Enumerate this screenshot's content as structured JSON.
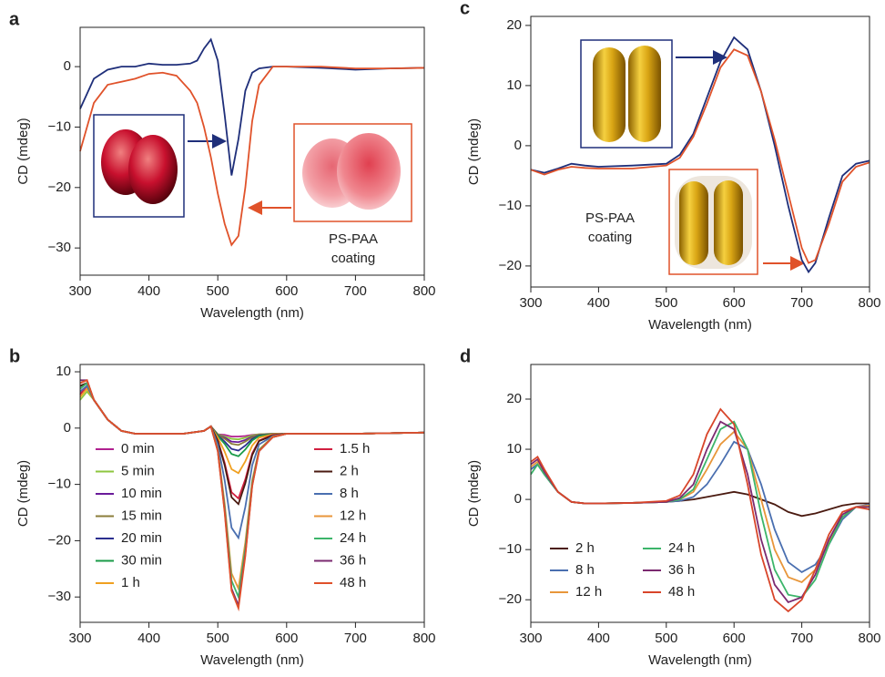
{
  "chart_data": [
    {
      "type": "line",
      "label": "a",
      "xlabel": "Wavelength (nm)",
      "ylabel": "CD (mdeg)",
      "xlim": [
        300,
        800
      ],
      "xticks": [
        300,
        400,
        500,
        600,
        700,
        800
      ],
      "ylim": [
        -34.5,
        6.5
      ],
      "yticks": [
        0,
        {
          "value": -10,
          "label": "−10"
        },
        {
          "value": -20,
          "label": "−20"
        },
        {
          "value": -30,
          "label": "−30"
        }
      ],
      "annotation": [
        "PS-PAA",
        "coating"
      ],
      "x": [
        300,
        320,
        340,
        360,
        380,
        400,
        420,
        440,
        460,
        470,
        480,
        490,
        500,
        510,
        520,
        530,
        540,
        550,
        560,
        580,
        600,
        650,
        700,
        750,
        800
      ],
      "series": [
        {
          "color": "#1f2f7a",
          "values": [
            -7,
            -2,
            -0.5,
            0,
            0,
            0.5,
            0.3,
            0.3,
            0.5,
            1,
            3,
            4.5,
            1,
            -8,
            -18,
            -12,
            -4,
            -1,
            -0.3,
            0,
            0,
            -0.2,
            -0.5,
            -0.3,
            -0.2
          ]
        },
        {
          "color": "#e0522a",
          "values": [
            -14,
            -6,
            -3,
            -2.5,
            -2,
            -1.2,
            -1,
            -1.5,
            -4,
            -6,
            -10,
            -15,
            -21,
            -26,
            -29.5,
            -28,
            -20,
            -9,
            -3,
            0,
            0,
            0,
            -0.3,
            -0.3,
            -0.2
          ]
        }
      ]
    },
    {
      "type": "line",
      "label": "b",
      "xlabel": "Wavelength (nm)",
      "ylabel": "CD (mdeg)",
      "xlim": [
        300,
        800
      ],
      "xticks": [
        300,
        400,
        500,
        600,
        700,
        800
      ],
      "ylim": [
        -34.5,
        11.3
      ],
      "yticks": [
        10,
        0,
        {
          "value": -10,
          "label": "−10"
        },
        {
          "value": -20,
          "label": "−20"
        },
        {
          "value": -30,
          "label": "−30"
        }
      ],
      "legend_columns": 2,
      "x": [
        300,
        310,
        320,
        340,
        360,
        380,
        400,
        450,
        480,
        490,
        500,
        510,
        520,
        530,
        540,
        550,
        560,
        580,
        600,
        700,
        800
      ],
      "series": [
        {
          "name": "0 min",
          "color": "#b0208f",
          "values": [
            6.5,
            7.5,
            5,
            1.5,
            -0.5,
            -1,
            -1,
            -1,
            -0.5,
            0.3,
            -1.1,
            -1.2,
            -1.5,
            -1.5,
            -1.4,
            -1.2,
            -1.1,
            -1,
            -1,
            -1,
            -0.8
          ]
        },
        {
          "name": "5 min",
          "color": "#8dc63f",
          "values": [
            5,
            6.5,
            5,
            1.5,
            -0.5,
            -1,
            -1,
            -1,
            -0.5,
            0.3,
            -1.1,
            -1.5,
            -1.9,
            -2,
            -1.7,
            -1.3,
            -1.1,
            -1,
            -1,
            -1,
            -0.8
          ]
        },
        {
          "name": "10 min",
          "color": "#6a1b9a",
          "values": [
            7,
            8,
            5,
            1.5,
            -0.5,
            -1,
            -1,
            -1,
            -0.5,
            0.3,
            -1.2,
            -1.7,
            -2.4,
            -2.5,
            -2.1,
            -1.5,
            -1.2,
            -1,
            -1,
            -1,
            -0.8
          ]
        },
        {
          "name": "15 min",
          "color": "#8b7d3a",
          "values": [
            7.5,
            8,
            5,
            1.5,
            -0.5,
            -1,
            -1,
            -1,
            -0.5,
            0.3,
            -1.2,
            -1.9,
            -2.8,
            -3,
            -2.4,
            -1.6,
            -1.2,
            -1,
            -1,
            -1,
            -0.8
          ]
        },
        {
          "name": "20 min",
          "color": "#2b2f8f",
          "values": [
            6,
            7.5,
            5,
            1.5,
            -0.5,
            -1,
            -1,
            -1,
            -0.5,
            0.3,
            -1.3,
            -2.4,
            -3.7,
            -4,
            -3.1,
            -1.9,
            -1.3,
            -1.1,
            -1,
            -1,
            -0.8
          ]
        },
        {
          "name": "30 min",
          "color": "#1a9b48",
          "values": [
            7,
            8,
            5,
            1.5,
            -0.5,
            -1,
            -1,
            -1,
            -0.5,
            0.3,
            -1.4,
            -2.8,
            -4.6,
            -5,
            -3.8,
            -2.2,
            -1.4,
            -1.1,
            -1,
            -1,
            -0.8
          ]
        },
        {
          "name": "1 h",
          "color": "#f0a020",
          "values": [
            5.5,
            7,
            5,
            1.5,
            -0.5,
            -1,
            -1,
            -1,
            -0.5,
            0.3,
            -1.7,
            -4.2,
            -7.3,
            -8,
            -5.9,
            -3.1,
            -1.7,
            -1.1,
            -1,
            -1,
            -0.8
          ]
        },
        {
          "name": "1.5 h",
          "color": "#d11f3f",
          "values": [
            6,
            7.5,
            5,
            1.5,
            -0.5,
            -1,
            -1,
            -1,
            -0.5,
            0.3,
            -2.2,
            -6.2,
            -11.4,
            -12.5,
            -9.1,
            -4.5,
            -2.2,
            -1.2,
            -1,
            -1,
            -0.8
          ]
        },
        {
          "name": "2 h",
          "color": "#4a1a10",
          "values": [
            7.5,
            8,
            5,
            1.5,
            -0.5,
            -1,
            -1,
            -1,
            -0.5,
            0.3,
            -2.3,
            -6.6,
            -12.3,
            -13.5,
            -9.8,
            -4.8,
            -2.3,
            -1.3,
            -1,
            -1,
            -0.8
          ]
        },
        {
          "name": "8 h",
          "color": "#4a6fb0",
          "values": [
            6.5,
            7.5,
            5,
            1.5,
            -0.5,
            -1,
            -1,
            -1,
            -0.5,
            0.3,
            -2.9,
            -9.3,
            -17.7,
            -19.5,
            -14,
            -6.6,
            -2.9,
            -1.4,
            -1,
            -1,
            -0.8
          ]
        },
        {
          "name": "12 h",
          "color": "#e8963a",
          "values": [
            8,
            8.5,
            5,
            1.5,
            -0.5,
            -1,
            -1,
            -1,
            -0.5,
            0.3,
            -3.8,
            -13.4,
            -25.8,
            -28.5,
            -20.3,
            -9.3,
            -3.8,
            -1.5,
            -1,
            -1,
            -0.8
          ]
        },
        {
          "name": "24 h",
          "color": "#3cb56a",
          "values": [
            7,
            8,
            5,
            1.5,
            -0.5,
            -1,
            -1,
            -1,
            -0.5,
            0.3,
            -3.9,
            -14.1,
            -27.1,
            -30,
            -21.3,
            -9.7,
            -3.9,
            -1.6,
            -1,
            -1,
            -0.8
          ]
        },
        {
          "name": "36 h",
          "color": "#7b2a70",
          "values": [
            8.5,
            8.5,
            5,
            1.5,
            -0.5,
            -1,
            -1,
            -1,
            -0.5,
            0.3,
            -4.1,
            -14.7,
            -28.5,
            -31.5,
            -22.4,
            -10.2,
            -4.1,
            -1.6,
            -1,
            -1,
            -0.8
          ]
        },
        {
          "name": "48 h",
          "color": "#e0502a",
          "values": [
            8,
            8.5,
            5,
            1.5,
            -0.5,
            -1,
            -1,
            -1,
            -0.5,
            0.3,
            -4.1,
            -15,
            -28.9,
            -32,
            -22.7,
            -10.3,
            -4.1,
            -1.6,
            -1,
            -1,
            -0.8
          ]
        }
      ]
    },
    {
      "type": "line",
      "label": "c",
      "xlabel": "Wavelength (nm)",
      "ylabel": "CD (mdeg)",
      "xlim": [
        300,
        800
      ],
      "xticks": [
        300,
        400,
        500,
        600,
        700,
        800
      ],
      "ylim": [
        -23.5,
        21.5
      ],
      "yticks": [
        20,
        10,
        0,
        {
          "value": -10,
          "label": "−10"
        },
        {
          "value": -20,
          "label": "−20"
        }
      ],
      "annotation": [
        "PS-PAA",
        "coating"
      ],
      "x": [
        300,
        320,
        340,
        360,
        380,
        400,
        450,
        500,
        520,
        540,
        560,
        580,
        600,
        620,
        640,
        660,
        680,
        700,
        710,
        720,
        740,
        760,
        780,
        800
      ],
      "series": [
        {
          "color": "#1f2f7a",
          "values": [
            -4,
            -4.5,
            -3.8,
            -3,
            -3.3,
            -3.5,
            -3.3,
            -3,
            -1.5,
            2,
            8,
            14,
            18,
            16,
            9,
            0,
            -10,
            -19,
            -21,
            -19.5,
            -12,
            -5,
            -3,
            -2.5
          ]
        },
        {
          "color": "#e0522a",
          "values": [
            -4,
            -4.8,
            -4,
            -3.5,
            -3.7,
            -3.8,
            -3.8,
            -3.3,
            -2,
            1.5,
            7,
            13,
            16,
            15,
            9,
            1,
            -8,
            -17,
            -19.5,
            -19,
            -13,
            -6,
            -3.5,
            -2.8
          ]
        }
      ]
    },
    {
      "type": "line",
      "label": "d",
      "xlabel": "Wavelength (nm)",
      "ylabel": "CD (mdeg)",
      "xlim": [
        300,
        800
      ],
      "xticks": [
        300,
        400,
        500,
        600,
        700,
        800
      ],
      "ylim": [
        -24.5,
        26.9
      ],
      "yticks": [
        20,
        10,
        0,
        {
          "value": -10,
          "label": "−10"
        },
        {
          "value": -20,
          "label": "−20"
        }
      ],
      "legend_columns": 2,
      "x": [
        300,
        310,
        320,
        340,
        360,
        380,
        400,
        450,
        500,
        520,
        540,
        560,
        580,
        600,
        620,
        640,
        660,
        680,
        700,
        720,
        740,
        760,
        780,
        800
      ],
      "series": [
        {
          "name": "2 h",
          "color": "#4a1a10",
          "values": [
            6,
            7,
            5,
            1.5,
            -0.5,
            -0.8,
            -0.8,
            -0.7,
            -0.5,
            -0.3,
            0,
            0.5,
            1,
            1.5,
            1,
            0,
            -1,
            -2.5,
            -3.3,
            -2.8,
            -2,
            -1.2,
            -0.8,
            -0.8
          ]
        },
        {
          "name": "8 h",
          "color": "#4a6fb0",
          "values": [
            6,
            7,
            5,
            1.5,
            -0.5,
            -0.8,
            -0.8,
            -0.7,
            -0.5,
            -0.3,
            0.5,
            3,
            7,
            11.5,
            10,
            3,
            -6,
            -12.5,
            -14.5,
            -13,
            -9,
            -4,
            -1.5,
            -1
          ]
        },
        {
          "name": "12 h",
          "color": "#e8963a",
          "values": [
            6.5,
            7.5,
            5.2,
            1.5,
            -0.5,
            -0.8,
            -0.8,
            -0.7,
            -0.5,
            0,
            1.5,
            6,
            11,
            13.5,
            10,
            0,
            -10,
            -15.5,
            -16.5,
            -14,
            -8.5,
            -3.5,
            -1.5,
            -1.2
          ]
        },
        {
          "name": "24 h",
          "color": "#3cb56a",
          "values": [
            5,
            7,
            5,
            1.5,
            -0.5,
            -0.8,
            -0.8,
            -0.7,
            -0.5,
            0,
            2,
            8,
            14,
            15.5,
            10,
            -3,
            -14,
            -19,
            -19.5,
            -16,
            -9,
            -3.5,
            -1.5,
            -1.5
          ]
        },
        {
          "name": "36 h",
          "color": "#7b2a70",
          "values": [
            7,
            8,
            5.5,
            1.5,
            -0.5,
            -0.8,
            -0.8,
            -0.7,
            -0.5,
            0.3,
            3,
            10,
            15.5,
            14,
            5,
            -8,
            -17,
            -20.5,
            -19.5,
            -15,
            -8,
            -3,
            -1.5,
            -1.5
          ]
        },
        {
          "name": "48 h",
          "color": "#d8452a",
          "values": [
            7.5,
            8.5,
            6,
            1.5,
            -0.5,
            -0.8,
            -0.8,
            -0.7,
            -0.3,
            0.8,
            5,
            13,
            18,
            15,
            3,
            -11,
            -20,
            -22.3,
            -20,
            -14,
            -7,
            -2.5,
            -1.5,
            -2
          ]
        }
      ]
    }
  ]
}
